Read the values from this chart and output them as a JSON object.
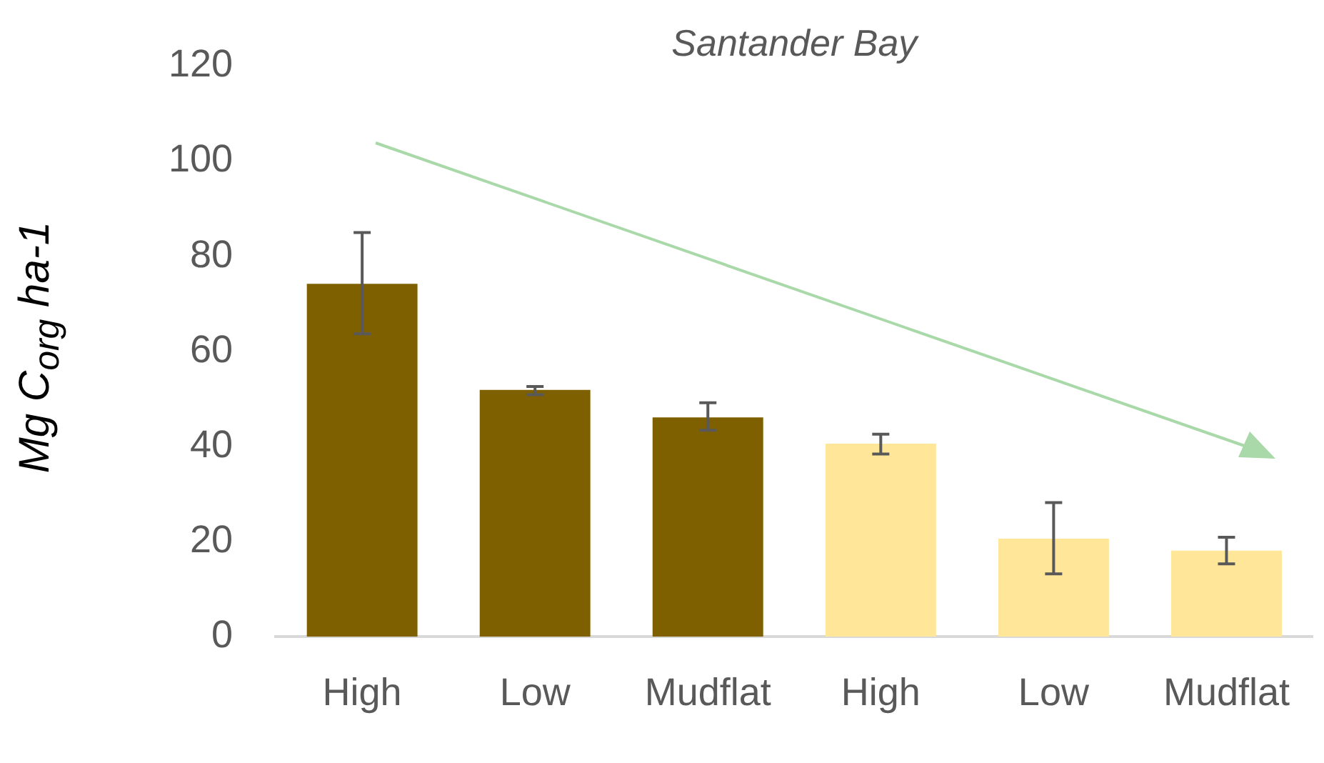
{
  "chart_data": {
    "type": "bar",
    "title": "Santander Bay",
    "ylabel": "Mg C$_{org}$ ha-1",
    "categories": [
      "High",
      "Low",
      "Mudflat",
      "High",
      "Low",
      "Mudflat"
    ],
    "values": [
      74.2,
      51.9,
      46.1,
      40.6,
      20.6,
      18.1
    ],
    "colors": [
      "#7f6000",
      "#7f6000",
      "#7f6000",
      "#ffe699",
      "#ffe699",
      "#ffe699"
    ],
    "errors": [
      [
        63.7,
        85
      ],
      [
        50.9,
        52.6
      ],
      [
        43.4,
        49.2
      ],
      [
        38.4,
        42.6
      ],
      [
        13.2,
        28.2
      ],
      [
        15.3,
        20.9
      ]
    ],
    "ylim": [
      0,
      120
    ],
    "yticks": [
      0,
      20,
      40,
      60,
      80,
      100,
      120
    ],
    "grid": false,
    "legend": false
  }
}
